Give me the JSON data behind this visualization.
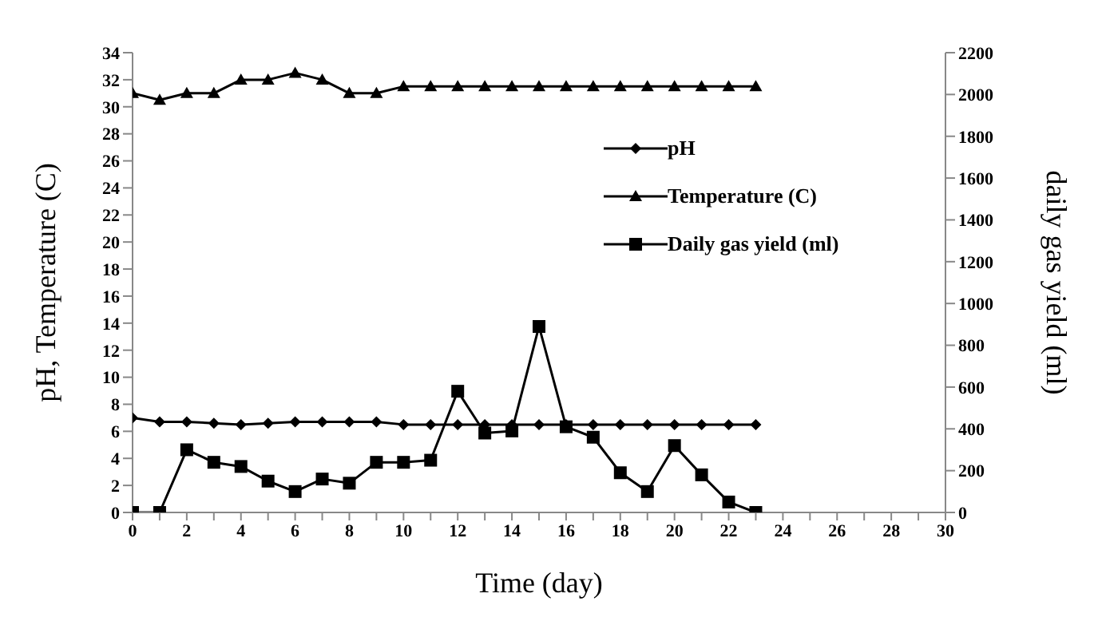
{
  "chart_data": {
    "type": "line",
    "xlabel": "Time (day)",
    "ylabel": "pH, Temperature (C)",
    "y2label": "daily gas yield (ml)",
    "x": [
      0,
      1,
      2,
      3,
      4,
      5,
      6,
      7,
      8,
      9,
      10,
      11,
      12,
      13,
      14,
      15,
      16,
      17,
      18,
      19,
      20,
      21,
      22,
      23
    ],
    "series": [
      {
        "name": "pH",
        "color": "#000000",
        "marker": "diamond",
        "values": [
          7.0,
          6.7,
          6.7,
          6.6,
          6.5,
          6.6,
          6.7,
          6.7,
          6.7,
          6.7,
          6.5,
          6.5,
          6.5,
          6.5,
          6.5,
          6.5,
          6.5,
          6.5,
          6.5,
          6.5,
          6.5,
          6.5,
          6.5,
          6.5
        ]
      },
      {
        "name": "Temperature (C)",
        "color": "#000000",
        "marker": "triangle",
        "values": [
          31,
          30.5,
          31,
          31,
          32,
          32,
          32.5,
          32,
          31,
          31,
          31.5,
          31.5,
          31.5,
          31.5,
          31.5,
          31.5,
          31.5,
          31.5,
          31.5,
          31.5,
          31.5,
          31.5,
          31.5,
          31.5
        ]
      },
      {
        "name": "Daily gas yield (ml)",
        "color": "#000000",
        "marker": "square",
        "axis": "y2",
        "values": [
          0,
          0,
          300,
          240,
          220,
          150,
          100,
          160,
          140,
          240,
          240,
          250,
          580,
          380,
          390,
          890,
          410,
          360,
          190,
          100,
          320,
          180,
          50,
          0
        ]
      }
    ],
    "xlim": [
      0,
      30
    ],
    "xticks": [
      0,
      {
        "value": 1,
        "label": null
      },
      2,
      {
        "value": 3,
        "label": null
      },
      4,
      {
        "value": 5,
        "label": null
      },
      6,
      {
        "value": 7,
        "label": null
      },
      8,
      {
        "value": 9,
        "label": null
      },
      10,
      {
        "value": 11,
        "label": null
      },
      12,
      {
        "value": 13,
        "label": null
      },
      14,
      {
        "value": 15,
        "label": null
      },
      16,
      {
        "value": 17,
        "label": null
      },
      18,
      {
        "value": 19,
        "label": null
      },
      20,
      {
        "value": 21,
        "label": null
      },
      22,
      {
        "value": 23,
        "label": null
      },
      24,
      {
        "value": 25,
        "label": null
      },
      26,
      {
        "value": 27,
        "label": null
      },
      28,
      {
        "value": 29,
        "label": null
      },
      30
    ],
    "ylim": [
      0,
      34
    ],
    "yticks": [
      0,
      2,
      4,
      6,
      8,
      10,
      12,
      14,
      16,
      18,
      20,
      22,
      24,
      26,
      28,
      30,
      32,
      34
    ],
    "y2lim": [
      0,
      2200
    ],
    "y2ticks": [
      0,
      200,
      400,
      600,
      800,
      1000,
      1200,
      1400,
      1600,
      1800,
      2000,
      2200
    ],
    "legend": "top right",
    "grid": false,
    "line_style": "solid"
  }
}
